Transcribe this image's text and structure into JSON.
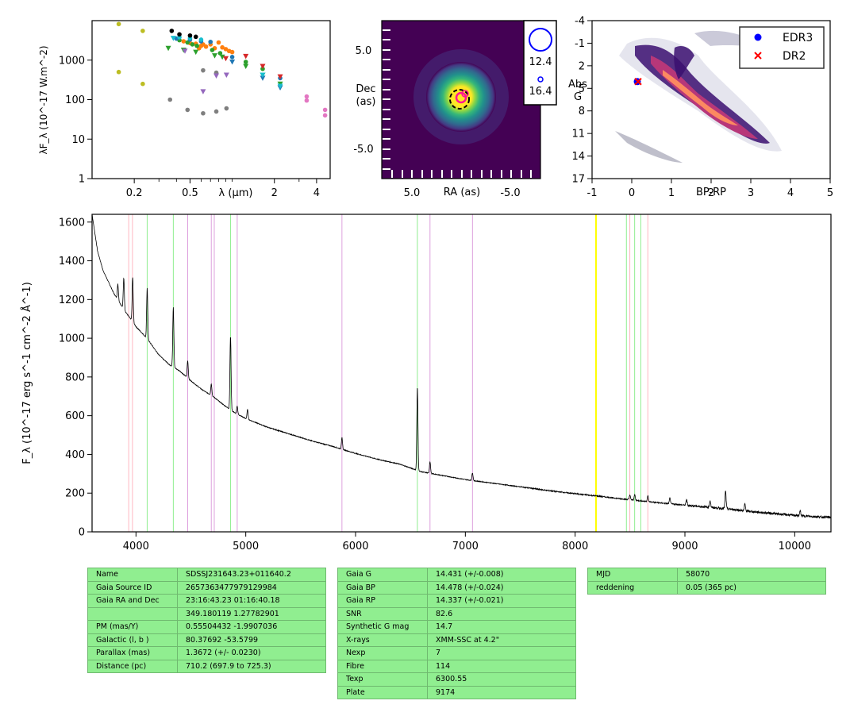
{
  "chart_data": [
    {
      "id": "sed",
      "type": "scatter",
      "xlabel": "λ (μm)",
      "ylabel": "λF_λ (10^-17 W.m^-2)",
      "xscale": "log",
      "yscale": "log",
      "xlim": [
        0.1,
        5.0
      ],
      "ylim": [
        1,
        10000
      ],
      "xticks": [
        "0.2",
        "0.5",
        "2",
        "4"
      ],
      "xtick_values": [
        0.2,
        0.5,
        2,
        4
      ],
      "yticks": [
        "1",
        "10",
        "100",
        "1000"
      ],
      "ytick_values": [
        1,
        10,
        100,
        1000
      ],
      "series": [
        {
          "marker": "dot",
          "color": "#bcbd22",
          "points": [
            [
              0.155,
              8200
            ],
            [
              0.155,
              500
            ],
            [
              0.23,
              5500
            ],
            [
              0.23,
              250
            ]
          ]
        },
        {
          "marker": "dot",
          "color": "#7f7f7f",
          "points": [
            [
              0.36,
              100
            ],
            [
              0.48,
              55
            ],
            [
              0.62,
              45
            ],
            [
              0.77,
              50
            ],
            [
              0.91,
              60
            ],
            [
              0.62,
              550
            ],
            [
              0.77,
              480
            ]
          ]
        },
        {
          "marker": "dot",
          "color": "#ff7f0e",
          "points": [
            [
              0.45,
              3000
            ],
            [
              0.5,
              2700
            ],
            [
              0.55,
              2600
            ],
            [
              0.6,
              2300
            ],
            [
              0.65,
              2200
            ],
            [
              0.7,
              2500
            ],
            [
              0.75,
              2000
            ],
            [
              0.8,
              2800
            ],
            [
              0.85,
              2100
            ],
            [
              0.9,
              1900
            ],
            [
              0.95,
              1700
            ],
            [
              1.0,
              1600
            ],
            [
              0.62,
              2500
            ],
            [
              0.58,
              2000
            ]
          ]
        },
        {
          "marker": "dot",
          "color": "#2ca02c",
          "points": [
            [
              0.42,
              3200
            ],
            [
              0.48,
              2800
            ],
            [
              0.52,
              2500
            ],
            [
              0.56,
              2300
            ],
            [
              0.72,
              1800
            ],
            [
              0.82,
              1500
            ],
            [
              1.25,
              900
            ],
            [
              1.65,
              600
            ]
          ]
        },
        {
          "marker": "dot",
          "color": "#e377c2",
          "points": [
            [
              3.4,
              120
            ],
            [
              3.4,
              95
            ],
            [
              4.6,
              55
            ],
            [
              4.6,
              40
            ]
          ]
        },
        {
          "marker": "dot",
          "color": "#1f77b4",
          "points": [
            [
              0.4,
              3500
            ],
            [
              0.5,
              3300
            ],
            [
              0.6,
              3000
            ],
            [
              0.7,
              2900
            ],
            [
              1.0,
              1200
            ],
            [
              2.2,
              350
            ]
          ]
        },
        {
          "marker": "dot",
          "color": "#17becf",
          "points": [
            [
              0.42,
              3800
            ],
            [
              0.5,
              3600
            ],
            [
              0.6,
              3300
            ]
          ]
        },
        {
          "marker": "triangle-down",
          "color": "#2ca02c",
          "points": [
            [
              0.35,
              2000
            ],
            [
              0.45,
              1800
            ],
            [
              0.55,
              1600
            ],
            [
              0.75,
              1300
            ],
            [
              0.85,
              1200
            ],
            [
              1.25,
              700
            ],
            [
              1.65,
              420
            ],
            [
              2.2,
              250
            ]
          ]
        },
        {
          "marker": "triangle-down",
          "color": "#9467bd",
          "points": [
            [
              0.46,
              1700
            ],
            [
              0.62,
              160
            ],
            [
              0.77,
              400
            ],
            [
              0.91,
              420
            ]
          ]
        },
        {
          "marker": "triangle-down",
          "color": "#d62728",
          "points": [
            [
              0.9,
              1100
            ],
            [
              1.25,
              1250
            ],
            [
              1.65,
              700
            ],
            [
              2.2,
              380
            ]
          ]
        },
        {
          "marker": "triangle-down",
          "color": "#1f77b4",
          "points": [
            [
              1.0,
              900
            ],
            [
              1.65,
              350
            ],
            [
              2.2,
              200
            ]
          ]
        },
        {
          "marker": "triangle-down",
          "color": "#17becf",
          "points": [
            [
              0.38,
              3600
            ],
            [
              1.65,
              420
            ],
            [
              2.2,
              220
            ]
          ]
        },
        {
          "marker": "dot",
          "color": "#000000",
          "points": [
            [
              0.37,
              5500
            ],
            [
              0.42,
              4500
            ],
            [
              0.5,
              4200
            ],
            [
              0.55,
              3900
            ]
          ]
        }
      ]
    },
    {
      "id": "image",
      "type": "heatmap",
      "xlabel": "RA (as)",
      "ylabel": "Dec (as)",
      "xticks": [
        "5.0",
        "-5.0"
      ],
      "yticks": [
        "5.0",
        "-5.0"
      ],
      "colormap": "viridis",
      "legend_values": [
        "12.4",
        "16.4"
      ]
    },
    {
      "id": "hrd",
      "type": "scatter",
      "xlabel": "BP-RP",
      "ylabel": "Abs G",
      "xlim": [
        -1,
        5
      ],
      "ylim": [
        17,
        -4
      ],
      "xticks": [
        "-1",
        "0",
        "1",
        "2",
        "3",
        "4",
        "5"
      ],
      "xtick_values": [
        -1,
        0,
        1,
        2,
        3,
        4,
        5
      ],
      "yticks": [
        "-4",
        "-1",
        "2",
        "5",
        "8",
        "11",
        "14",
        "17"
      ],
      "ytick_values": [
        -4,
        -1,
        2,
        5,
        8,
        11,
        14,
        17
      ],
      "legend_position": "top-right",
      "series": [
        {
          "name": "EDR3",
          "marker": "dot",
          "color": "#0000ff",
          "points": [
            [
              0.14,
              4.1
            ]
          ]
        },
        {
          "name": "DR2",
          "marker": "x",
          "color": "#ff0000",
          "points": [
            [
              0.16,
              4.1
            ]
          ]
        }
      ]
    },
    {
      "id": "spectrum",
      "type": "line",
      "xlabel": "",
      "ylabel": "F_λ (10^-17 erg s^-1 cm^-2 Å^-1)",
      "xlim": [
        3600,
        10330
      ],
      "ylim": [
        0,
        1640
      ],
      "xticks": [
        "4000",
        "5000",
        "6000",
        "7000",
        "8000",
        "9000",
        "10000"
      ],
      "xtick_values": [
        4000,
        5000,
        6000,
        7000,
        8000,
        9000,
        10000
      ],
      "yticks": [
        "0",
        "200",
        "400",
        "600",
        "800",
        "1000",
        "1200",
        "1400",
        "1600"
      ],
      "ytick_values": [
        0,
        200,
        400,
        600,
        800,
        1000,
        1200,
        1400,
        1600
      ],
      "continuum": [
        [
          3600,
          1640
        ],
        [
          3650,
          1450
        ],
        [
          3700,
          1350
        ],
        [
          3800,
          1230
        ],
        [
          3900,
          1140
        ],
        [
          4000,
          1060
        ],
        [
          4100,
          1000
        ],
        [
          4200,
          920
        ],
        [
          4300,
          865
        ],
        [
          4400,
          830
        ],
        [
          4500,
          780
        ],
        [
          4600,
          735
        ],
        [
          4700,
          700
        ],
        [
          4800,
          655
        ],
        [
          4900,
          615
        ],
        [
          5000,
          585
        ],
        [
          5200,
          540
        ],
        [
          5400,
          505
        ],
        [
          5600,
          470
        ],
        [
          5800,
          440
        ],
        [
          6000,
          405
        ],
        [
          6200,
          375
        ],
        [
          6400,
          350
        ],
        [
          6600,
          310
        ],
        [
          6800,
          290
        ],
        [
          7000,
          270
        ],
        [
          7200,
          255
        ],
        [
          7400,
          240
        ],
        [
          7600,
          225
        ],
        [
          7800,
          210
        ],
        [
          8000,
          197
        ],
        [
          8200,
          185
        ],
        [
          8400,
          172
        ],
        [
          8600,
          160
        ],
        [
          8800,
          148
        ],
        [
          9000,
          138
        ],
        [
          9200,
          128
        ],
        [
          9400,
          118
        ],
        [
          9600,
          105
        ],
        [
          9800,
          95
        ],
        [
          10000,
          85
        ],
        [
          10200,
          78
        ],
        [
          10330,
          75
        ]
      ],
      "emission_lines": [
        [
          3835,
          80
        ],
        [
          3889,
          160
        ],
        [
          3970,
          230
        ],
        [
          4102,
          260
        ],
        [
          4340,
          310
        ],
        [
          4471,
          90
        ],
        [
          4686,
          60
        ],
        [
          4861,
          380
        ],
        [
          4922,
          40
        ],
        [
          5016,
          50
        ],
        [
          5876,
          60
        ],
        [
          6563,
          430
        ],
        [
          6678,
          60
        ],
        [
          7065,
          40
        ],
        [
          8498,
          25
        ],
        [
          8542,
          30
        ],
        [
          8662,
          30
        ],
        [
          8863,
          30
        ],
        [
          9015,
          30
        ],
        [
          9229,
          35
        ],
        [
          9370,
          90
        ],
        [
          9546,
          35
        ],
        [
          10050,
          25
        ]
      ],
      "vlines": [
        {
          "x": 3934,
          "color": "#ffb6c1"
        },
        {
          "x": 3968,
          "color": "#ffb6c1"
        },
        {
          "x": 4102,
          "color": "#90ee90"
        },
        {
          "x": 4340,
          "color": "#90ee90"
        },
        {
          "x": 4471,
          "color": "#dda0dd"
        },
        {
          "x": 4686,
          "color": "#dda0dd"
        },
        {
          "x": 4713,
          "color": "#dda0dd"
        },
        {
          "x": 4861,
          "color": "#90ee90"
        },
        {
          "x": 4922,
          "color": "#dda0dd"
        },
        {
          "x": 5876,
          "color": "#dda0dd"
        },
        {
          "x": 6563,
          "color": "#90ee90"
        },
        {
          "x": 6678,
          "color": "#dda0dd"
        },
        {
          "x": 7065,
          "color": "#dda0dd"
        },
        {
          "x": 8190,
          "color": "#ffff00"
        },
        {
          "x": 8467,
          "color": "#90ee90"
        },
        {
          "x": 8498,
          "color": "#ffb6c1"
        },
        {
          "x": 8542,
          "color": "#90ee90"
        },
        {
          "x": 8598,
          "color": "#90ee90"
        },
        {
          "x": 8662,
          "color": "#ffb6c1"
        }
      ]
    }
  ],
  "tables": {
    "left": [
      [
        "Name",
        "SDSSJ231643.23+011640.2"
      ],
      [
        "Gaia Source ID",
        "2657363477979129984"
      ],
      [
        "Gaia RA and Dec",
        "23:16:43.23    01:16:40.18"
      ],
      [
        "",
        "349.180119    1.27782901"
      ],
      [
        "PM (mas/Y)",
        "0.55504432    -1.9907036"
      ],
      [
        "Galactic (l, b )",
        "80.37692    -53.5799"
      ],
      [
        "Parallax (mas)",
        "1.3672 (+/- 0.0230)"
      ],
      [
        "Distance (pc)",
        "710.2 (697.9 to 725.3)"
      ]
    ],
    "middle": [
      [
        "Gaia G",
        "14.431 (+/-0.008)"
      ],
      [
        "Gaia BP",
        "14.478 (+/-0.024)"
      ],
      [
        "Gaia RP",
        "14.337 (+/-0.021)"
      ],
      [
        "SNR",
        "82.6"
      ],
      [
        "Synthetic G mag",
        "14.7"
      ],
      [
        "X-rays",
        "XMM-SSC at 4.2\""
      ],
      [
        "Nexp",
        "7"
      ],
      [
        "Fibre",
        "114"
      ],
      [
        "Texp",
        "6300.55"
      ],
      [
        "Plate",
        "9174"
      ]
    ],
    "right": [
      [
        "MJD",
        "58070"
      ],
      [
        "reddening",
        "0.05 (365 pc)"
      ]
    ]
  }
}
